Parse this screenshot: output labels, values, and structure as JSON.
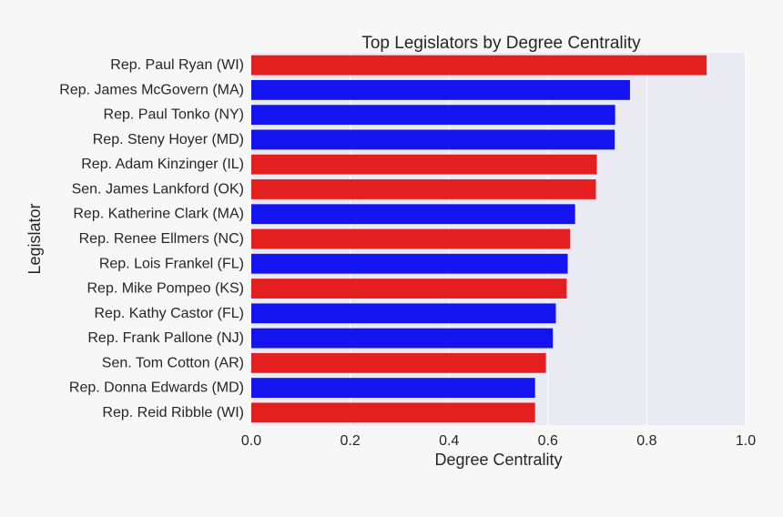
{
  "chart_data": {
    "type": "bar",
    "orientation": "horizontal",
    "title": "Top Legislators by Degree Centrality",
    "xlabel": "Degree Centrality",
    "ylabel": "Legislator",
    "xlim": [
      0.0,
      1.0
    ],
    "xticks": [
      "0.0",
      "0.2",
      "0.4",
      "0.6",
      "0.8",
      "1.0"
    ],
    "grid": true,
    "colors": {
      "republican": "#e31f1f",
      "democrat": "#1414f0",
      "plot_background": "#eaeaf2",
      "gridline": "#ffffff"
    },
    "categories": [
      "Rep. Paul Ryan (WI)",
      "Rep. James McGovern (MA)",
      "Rep. Paul Tonko (NY)",
      "Rep. Steny Hoyer (MD)",
      "Rep. Adam Kinzinger (IL)",
      "Sen. James Lankford (OK)",
      "Rep. Katherine Clark (MA)",
      "Rep. Renee Ellmers (NC)",
      "Rep. Lois Frankel (FL)",
      "Rep. Mike Pompeo (KS)",
      "Rep. Kathy Castor (FL)",
      "Rep. Frank Pallone (NJ)",
      "Sen. Tom Cotton (AR)",
      "Rep. Donna Edwards (MD)",
      "Rep. Reid Ribble (WI)"
    ],
    "values": [
      0.921,
      0.766,
      0.736,
      0.735,
      0.699,
      0.697,
      0.655,
      0.645,
      0.64,
      0.638,
      0.616,
      0.61,
      0.596,
      0.574,
      0.574
    ],
    "bar_colors": [
      "republican",
      "democrat",
      "democrat",
      "democrat",
      "republican",
      "republican",
      "democrat",
      "republican",
      "democrat",
      "republican",
      "democrat",
      "democrat",
      "republican",
      "democrat",
      "republican"
    ]
  }
}
